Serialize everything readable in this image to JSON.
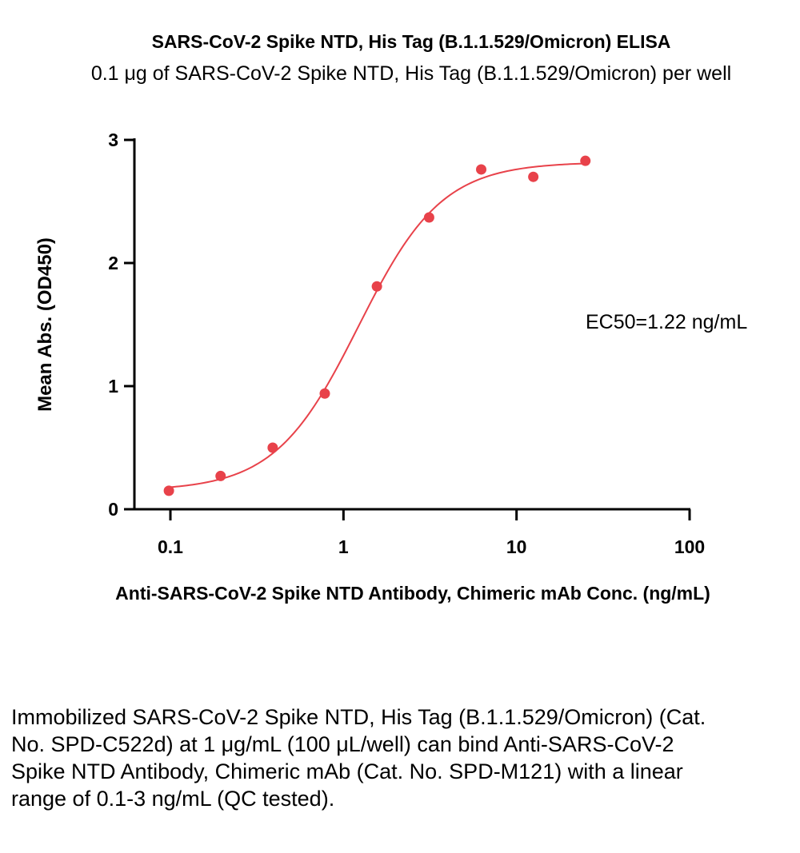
{
  "chart_data": {
    "type": "scatter",
    "title": "SARS-CoV-2 Spike NTD, His Tag (B.1.1.529/Omicron) ELISA",
    "subtitle": "0.1 μg of SARS-CoV-2 Spike NTD, His Tag (B.1.1.529/Omicron) per well",
    "xlabel": "Anti-SARS-CoV-2 Spike NTD Antibody, Chimeric mAb Conc. (ng/mL)",
    "ylabel": "Mean Abs. (OD450)",
    "xscale": "log",
    "xlim": [
      0.1,
      100
    ],
    "ylim": [
      0,
      3
    ],
    "x_ticks": [
      0.1,
      1,
      10,
      100
    ],
    "x_tick_labels": [
      "0.1",
      "1",
      "10",
      "100"
    ],
    "y_ticks": [
      0,
      1,
      2,
      3
    ],
    "y_tick_labels": [
      "0",
      "1",
      "2",
      "3"
    ],
    "grid": false,
    "color": "#e8424a",
    "series": [
      {
        "x": [
          0.098,
          0.195,
          0.39,
          0.78,
          1.56,
          3.125,
          6.25,
          12.5,
          25
        ],
        "y": [
          0.15,
          0.27,
          0.5,
          0.94,
          1.81,
          2.37,
          2.76,
          2.7,
          2.83
        ]
      }
    ],
    "fit_curve": {
      "bottom": 0.15,
      "top": 2.82,
      "ec50": 1.22,
      "hill": 1.8
    },
    "annotation": "EC50=1.22 ng/mL"
  },
  "caption": "Immobilized SARS-CoV-2 Spike NTD, His Tag (B.1.1.529/Omicron) (Cat. No. SPD-C522d) at 1 μg/mL (100 μL/well) can bind Anti-SARS-CoV-2 Spike NTD Antibody, Chimeric mAb (Cat. No. SPD-M121) with a linear range of 0.1-3 ng/mL (QC tested)."
}
